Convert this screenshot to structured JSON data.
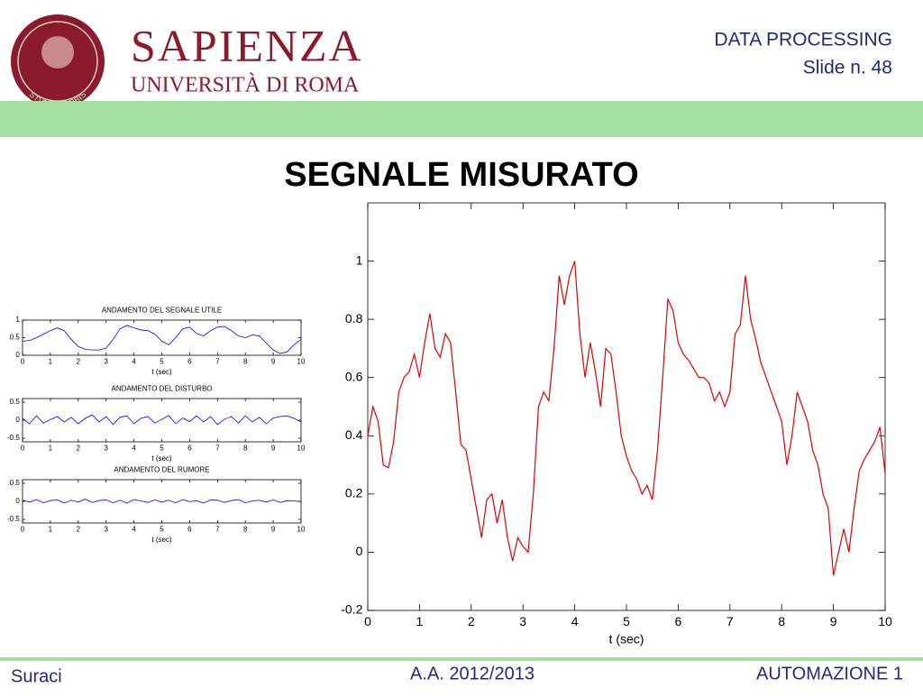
{
  "header": {
    "logo_text": "STVDIVM VRBIS",
    "university_name": "SAPIENZA",
    "university_sub": "UNIVERSITÀ DI ROMA",
    "course": "DATA PROCESSING",
    "slide": "Slide n. 48"
  },
  "slide_title": "SEGNALE MISURATO",
  "footer": {
    "author": "Suraci",
    "year": "A.A. 2012/2013",
    "course": "AUTOMAZIONE 1"
  },
  "chart_data": [
    {
      "type": "line",
      "x_label": "t (sec)",
      "color": "#e00000",
      "x": [
        0,
        0.1,
        0.2,
        0.3,
        0.4,
        0.5,
        0.6,
        0.7,
        0.8,
        0.9,
        1,
        1.1,
        1.2,
        1.3,
        1.4,
        1.5,
        1.6,
        1.7,
        1.8,
        1.9,
        2,
        2.1,
        2.2,
        2.3,
        2.4,
        2.5,
        2.6,
        2.7,
        2.8,
        2.9,
        3,
        3.1,
        3.2,
        3.3,
        3.4,
        3.5,
        3.6,
        3.7,
        3.8,
        3.9,
        4,
        4.1,
        4.2,
        4.3,
        4.4,
        4.5,
        4.6,
        4.7,
        4.8,
        4.9,
        5,
        5.1,
        5.2,
        5.3,
        5.4,
        5.5,
        5.6,
        5.7,
        5.8,
        5.9,
        6,
        6.1,
        6.2,
        6.3,
        6.4,
        6.5,
        6.6,
        6.7,
        6.8,
        6.9,
        7,
        7.1,
        7.2,
        7.3,
        7.4,
        7.5,
        7.6,
        7.7,
        7.8,
        7.9,
        8,
        8.1,
        8.2,
        8.3,
        8.4,
        8.5,
        8.6,
        8.7,
        8.8,
        8.9,
        9,
        9.1,
        9.2,
        9.3,
        9.4,
        9.5,
        9.6,
        9.7,
        9.8,
        9.9,
        10
      ],
      "values": [
        0.4,
        0.5,
        0.45,
        0.3,
        0.29,
        0.38,
        0.55,
        0.6,
        0.62,
        0.68,
        0.6,
        0.72,
        0.82,
        0.7,
        0.67,
        0.75,
        0.72,
        0.55,
        0.37,
        0.35,
        0.25,
        0.15,
        0.05,
        0.18,
        0.2,
        0.1,
        0.18,
        0.05,
        -0.03,
        0.05,
        0.02,
        0,
        0.2,
        0.5,
        0.55,
        0.52,
        0.7,
        0.95,
        0.85,
        0.95,
        1,
        0.75,
        0.6,
        0.72,
        0.62,
        0.5,
        0.7,
        0.68,
        0.55,
        0.4,
        0.33,
        0.28,
        0.25,
        0.2,
        0.23,
        0.18,
        0.35,
        0.6,
        0.87,
        0.83,
        0.72,
        0.68,
        0.66,
        0.63,
        0.6,
        0.6,
        0.58,
        0.52,
        0.55,
        0.5,
        0.55,
        0.75,
        0.78,
        0.95,
        0.8,
        0.73,
        0.65,
        0.6,
        0.55,
        0.5,
        0.45,
        0.3,
        0.4,
        0.55,
        0.5,
        0.45,
        0.35,
        0.3,
        0.2,
        0.15,
        -0.08,
        0,
        0.08,
        0,
        0.15,
        0.28,
        0.32,
        0.35,
        0.38,
        0.43,
        0.27
      ],
      "xlim": [
        0,
        10
      ],
      "xticks": [
        0,
        1,
        2,
        3,
        4,
        5,
        6,
        7,
        8,
        9,
        10
      ],
      "ylim": [
        -0.2,
        1.2
      ],
      "yticks": [
        -0.2,
        0,
        0.2,
        0.4,
        0.6,
        0.8,
        1
      ]
    },
    {
      "type": "line",
      "title": "ANDAMENTO DEL SEGNALE UTILE",
      "x_label": "t (sec)",
      "color": "#0000ff",
      "x": [
        0,
        0.25,
        0.5,
        0.75,
        1,
        1.25,
        1.5,
        1.75,
        2,
        2.25,
        2.5,
        2.75,
        3,
        3.25,
        3.5,
        3.75,
        4,
        4.25,
        4.5,
        4.75,
        5,
        5.25,
        5.5,
        5.75,
        6,
        6.25,
        6.5,
        6.75,
        7,
        7.25,
        7.5,
        7.75,
        8,
        8.25,
        8.5,
        8.75,
        9,
        9.25,
        9.5,
        9.75,
        10
      ],
      "values": [
        0.4,
        0.42,
        0.5,
        0.6,
        0.7,
        0.78,
        0.7,
        0.45,
        0.25,
        0.17,
        0.15,
        0.15,
        0.2,
        0.45,
        0.75,
        0.85,
        0.78,
        0.72,
        0.7,
        0.6,
        0.4,
        0.3,
        0.5,
        0.75,
        0.8,
        0.62,
        0.55,
        0.7,
        0.8,
        0.82,
        0.7,
        0.55,
        0.5,
        0.58,
        0.55,
        0.35,
        0.15,
        0.05,
        0.1,
        0.3,
        0.45
      ],
      "xlim": [
        0,
        10
      ],
      "xticks": [
        0,
        1,
        2,
        3,
        4,
        5,
        6,
        7,
        8,
        9,
        10
      ],
      "ylim": [
        0,
        1
      ],
      "yticks": [
        0,
        0.5,
        1
      ]
    },
    {
      "type": "line",
      "title": "ANDAMENTO DEL DISTURBO",
      "x_label": "t (sec)",
      "color": "#0000ff",
      "x": [
        0,
        0.25,
        0.5,
        0.75,
        1,
        1.25,
        1.5,
        1.75,
        2,
        2.25,
        2.5,
        2.75,
        3,
        3.25,
        3.5,
        3.75,
        4,
        4.25,
        4.5,
        4.75,
        5,
        5.25,
        5.5,
        5.75,
        6,
        6.25,
        6.5,
        6.75,
        7,
        7.25,
        7.5,
        7.75,
        8,
        8.25,
        8.5,
        8.75,
        9,
        9.25,
        9.5,
        9.75,
        10
      ],
      "values": [
        0.05,
        -0.1,
        0.12,
        -0.08,
        0.02,
        0.1,
        -0.05,
        0.08,
        -0.1,
        0.05,
        0.15,
        -0.05,
        0.1,
        -0.12,
        0.08,
        0.12,
        -0.1,
        0.05,
        0.1,
        -0.08,
        0.02,
        0.13,
        -0.1,
        0.06,
        -0.04,
        0.12,
        -0.05,
        0.1,
        -0.12,
        0.03,
        0.1,
        -0.08,
        0.12,
        -0.05,
        0.08,
        -0.1,
        0.06,
        0.1,
        0.12,
        0.05,
        -0.05
      ],
      "xlim": [
        0,
        10
      ],
      "xticks": [
        0,
        1,
        2,
        3,
        4,
        5,
        6,
        7,
        8,
        9,
        10
      ],
      "ylim": [
        -0.6,
        0.6
      ],
      "yticks": [
        -0.5,
        0,
        0.5
      ]
    },
    {
      "type": "line",
      "title": "ANDAMENTO DEL RUMORE",
      "x_label": "t (sec)",
      "color": "#0000ff",
      "x": [
        0,
        0.25,
        0.5,
        0.75,
        1,
        1.25,
        1.5,
        1.75,
        2,
        2.25,
        2.5,
        2.75,
        3,
        3.25,
        3.5,
        3.75,
        4,
        4.25,
        4.5,
        4.75,
        5,
        5.25,
        5.5,
        5.75,
        6,
        6.25,
        6.5,
        6.75,
        7,
        7.25,
        7.5,
        7.75,
        8,
        8.25,
        8.5,
        8.75,
        9,
        9.25,
        9.5,
        9.75,
        10
      ],
      "values": [
        0.03,
        -0.02,
        0.05,
        -0.04,
        0.02,
        0.04,
        -0.05,
        0.03,
        -0.02,
        0.06,
        -0.03,
        0.02,
        0.04,
        -0.04,
        0.03,
        -0.05,
        0.05,
        0.01,
        -0.03,
        0.04,
        -0.02,
        0.03,
        -0.04,
        0.05,
        -0.01,
        0.02,
        -0.05,
        0.04,
        0.03,
        -0.03,
        0.02,
        0.05,
        -0.04,
        0.01,
        0.03,
        -0.02,
        0.04,
        -0.03,
        0.02,
        0.01,
        -0.01
      ],
      "xlim": [
        0,
        10
      ],
      "xticks": [
        0,
        1,
        2,
        3,
        4,
        5,
        6,
        7,
        8,
        9,
        10
      ],
      "ylim": [
        -0.6,
        0.6
      ],
      "yticks": [
        -0.5,
        0,
        0.5
      ]
    }
  ]
}
